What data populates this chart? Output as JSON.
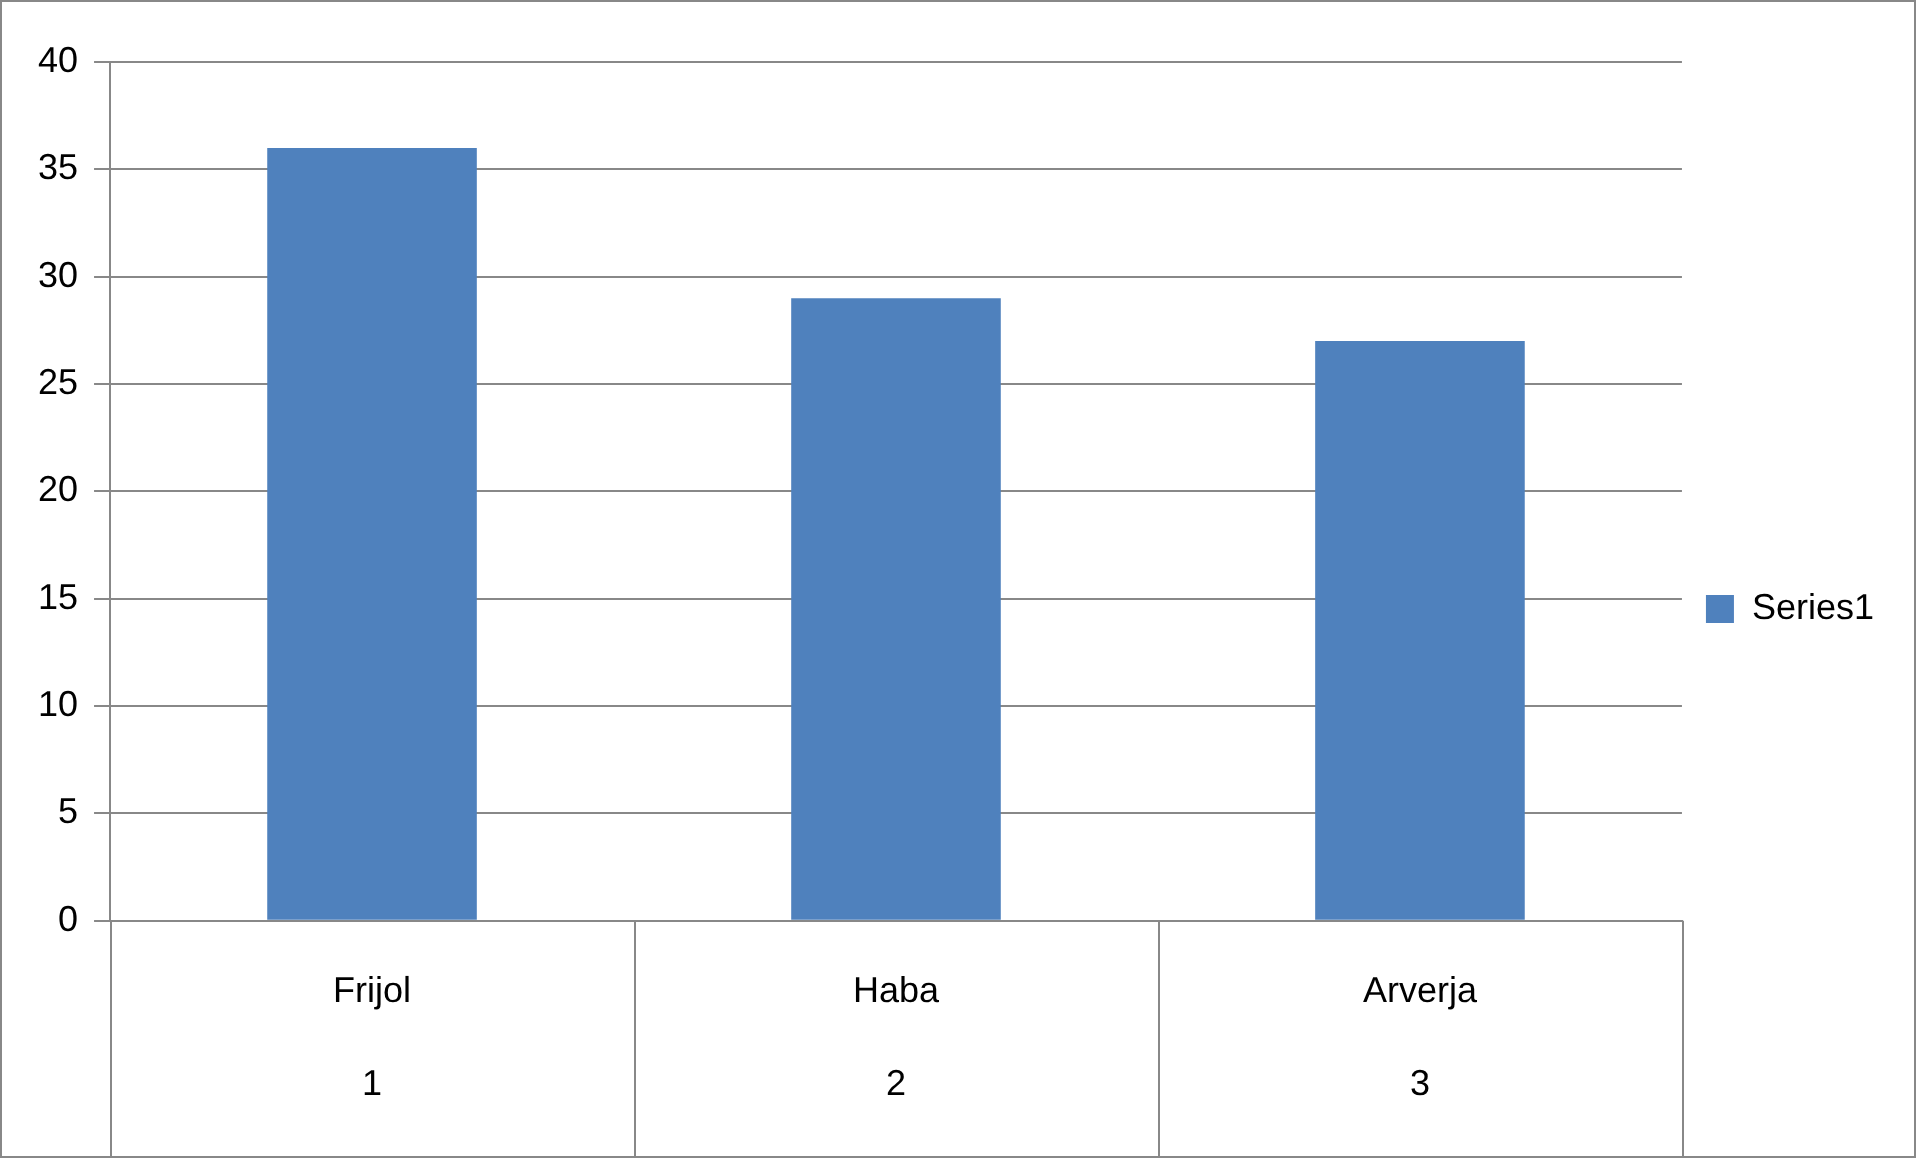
{
  "chart_data": {
    "type": "bar",
    "categories": [
      "Frijol\n1",
      "Haba\n2",
      "Arverja\n3"
    ],
    "series": [
      {
        "name": "Series1",
        "color": "#4f81bd",
        "values": [
          36,
          29,
          27
        ]
      }
    ],
    "ylim": [
      0,
      40
    ],
    "yticks": [
      0,
      5,
      10,
      15,
      20,
      25,
      30,
      35,
      40
    ],
    "grid": "y",
    "legend": "right"
  }
}
